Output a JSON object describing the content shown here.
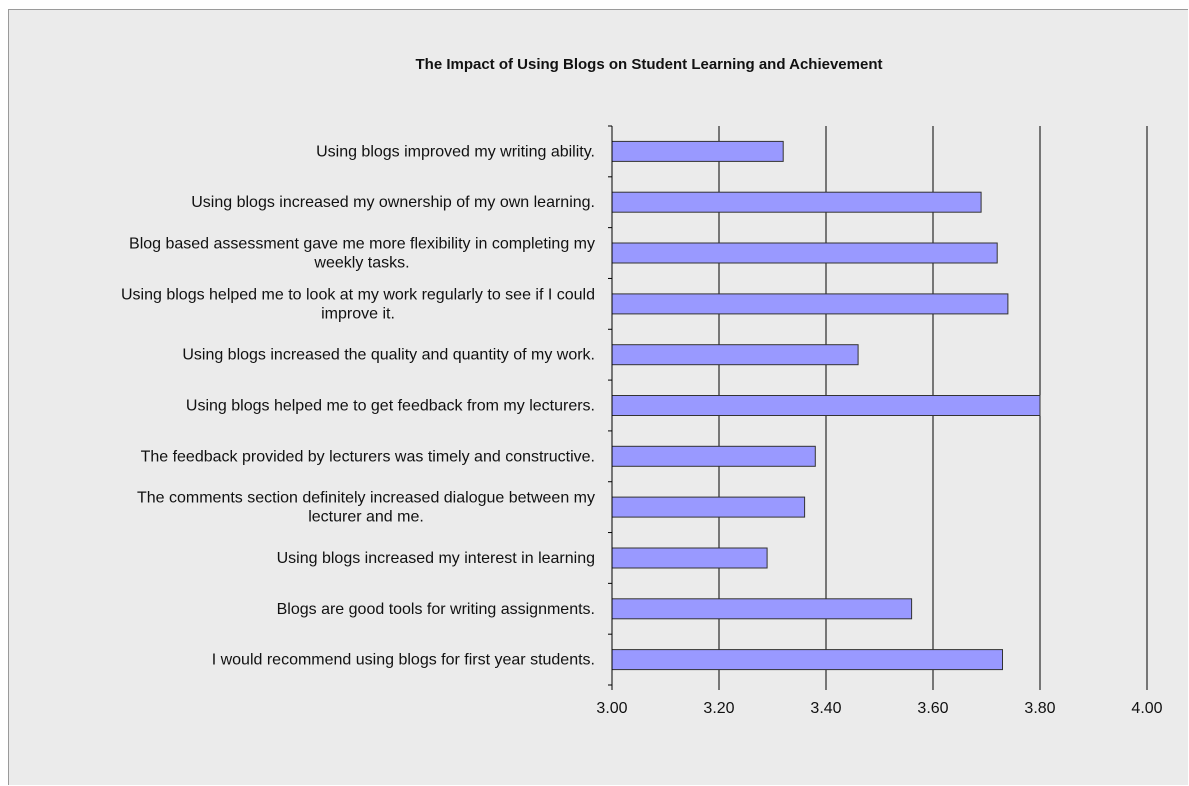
{
  "chart_data": {
    "type": "bar",
    "orientation": "horizontal",
    "title": "The Impact of Using Blogs on Student Learning and Achievement",
    "xlabel": "",
    "ylabel": "",
    "xlim": [
      3.0,
      4.0
    ],
    "x_ticks": [
      "3.00",
      "3.20",
      "3.40",
      "3.60",
      "3.80",
      "4.00"
    ],
    "x_tick_values": [
      3.0,
      3.2,
      3.4,
      3.6,
      3.8,
      4.0
    ],
    "grid": true,
    "legend": "none",
    "bar_color": "#9999ff",
    "bar_edge_color": "#333333",
    "categories": [
      "Using blogs improved my writing ability.",
      "Using blogs increased my ownership of my own learning.",
      "Blog based assessment gave me more flexibility in completing my weekly tasks.",
      "Using blogs helped me to look at my work regularly to see if I could improve it.",
      "Using blogs increased the quality and quantity of my work.",
      "Using blogs helped me to get feedback from my lecturers.",
      "The feedback provided by lecturers was timely and constructive.",
      "The comments section definitely increased dialogue between my lecturer and me.",
      "Using blogs increased my interest in learning",
      "Blogs are good tools for writing assignments.",
      "I would recommend using blogs for first year students."
    ],
    "category_lines": [
      [
        "Using blogs improved my writing ability."
      ],
      [
        "Using blogs increased my ownership of my own learning."
      ],
      [
        "Blog based assessment gave me more flexibility in completing my",
        "weekly tasks."
      ],
      [
        "Using blogs helped me to look at my work regularly to see if I could",
        "improve it."
      ],
      [
        "Using blogs increased the quality and quantity of my work."
      ],
      [
        "Using blogs helped me to get feedback from my lecturers."
      ],
      [
        "The feedback provided by lecturers was timely and constructive."
      ],
      [
        "The comments section definitely increased dialogue between my",
        "lecturer and me."
      ],
      [
        "Using blogs increased my interest in learning"
      ],
      [
        "Blogs are good tools for writing assignments."
      ],
      [
        "I would recommend using blogs for first year students."
      ]
    ],
    "values": [
      3.32,
      3.69,
      3.72,
      3.74,
      3.46,
      3.8,
      3.38,
      3.36,
      3.29,
      3.56,
      3.73
    ]
  }
}
